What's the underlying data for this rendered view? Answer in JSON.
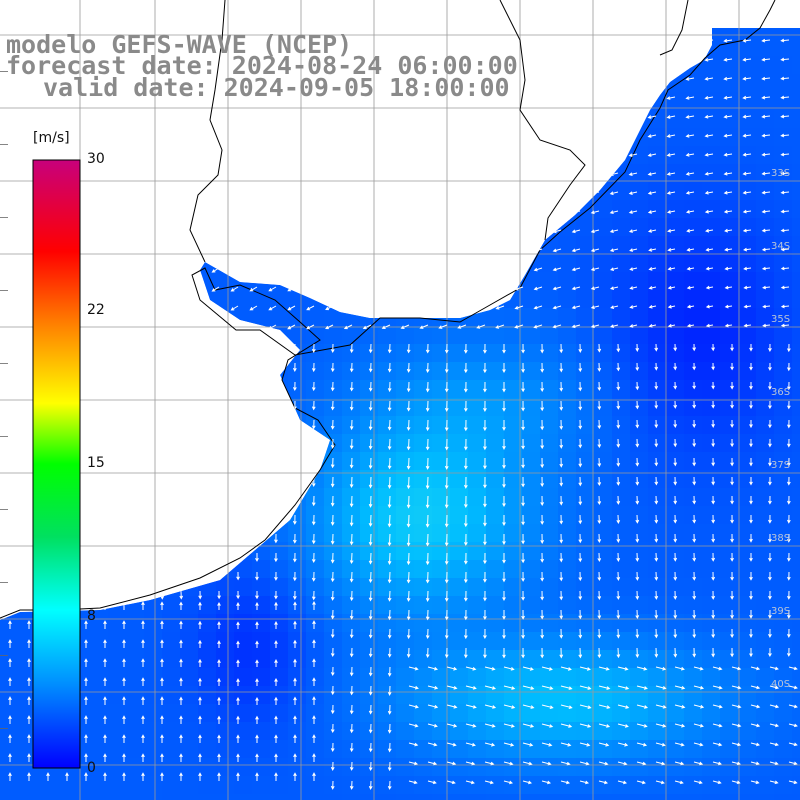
{
  "title": {
    "model": "modelo GEFS-WAVE (NCEP)",
    "forecast": "forecast date: 2024-08-24 06:00:00",
    "valid": "valid date: 2024-09-05 18:00:00"
  },
  "colorbar": {
    "unit": "[m/s]",
    "ticks": [
      "30",
      "22",
      "15",
      "8",
      "0"
    ],
    "tick_values": [
      30,
      22,
      15,
      8,
      0
    ],
    "min": 0,
    "max": 30,
    "colors": [
      "#0000ff",
      "#00a0ff",
      "#00ffff",
      "#00ff00",
      "#ffff00",
      "#ffa000",
      "#ff0000",
      "#cc007a"
    ]
  },
  "map": {
    "land_color": "#ffffff",
    "coast_color": "#000000",
    "grid_color": "#999999",
    "arrow_color": "#ffffff",
    "lat_labels": [
      "33S",
      "34S",
      "35S",
      "36S",
      "37S",
      "38S",
      "39S",
      "40S"
    ]
  }
}
